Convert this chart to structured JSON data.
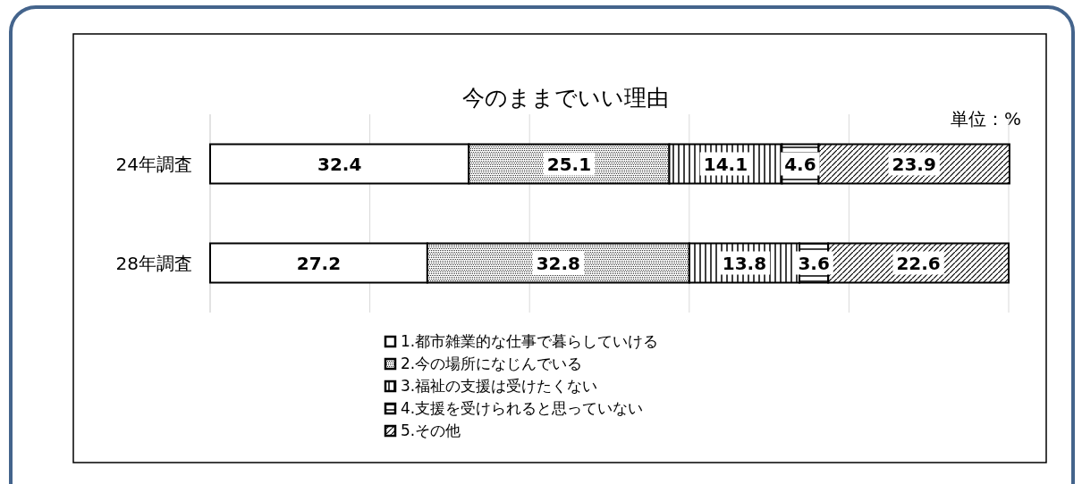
{
  "chart_data": {
    "type": "bar",
    "orientation": "horizontal",
    "stacked": true,
    "title": "今のままでいい理由",
    "annotations": [
      "単位：%"
    ],
    "categories": [
      "24年調査",
      "28年調査"
    ],
    "series": [
      {
        "name": "1.都市雑業的な仕事で暮らしていける",
        "color": "#ffffff",
        "values": [
          32.4,
          27.2
        ]
      },
      {
        "name": "2.今の場所になじんでいる",
        "color": "#000000",
        "values": [
          25.1,
          32.8
        ]
      },
      {
        "name": "3.福祉の支援は受けたくない",
        "color": "#000000",
        "values": [
          14.1,
          13.8
        ]
      },
      {
        "name": "4.支援を受けられると思っていない",
        "color": "#000000",
        "values": [
          4.6,
          3.6
        ]
      },
      {
        "name": "5.その他",
        "color": "#000000",
        "values": [
          23.9,
          22.6
        ]
      }
    ],
    "xlim": [
      0,
      100
    ],
    "xticks": [
      {
        "value": 0,
        "label": null
      },
      {
        "value": 20,
        "label": null
      },
      {
        "value": 40,
        "label": null
      },
      {
        "value": 60,
        "label": null
      },
      {
        "value": 80,
        "label": null
      },
      {
        "value": 100,
        "label": null
      }
    ],
    "grid": "x",
    "tick_labels": "y",
    "data_labels": true,
    "legend": "bottom"
  }
}
